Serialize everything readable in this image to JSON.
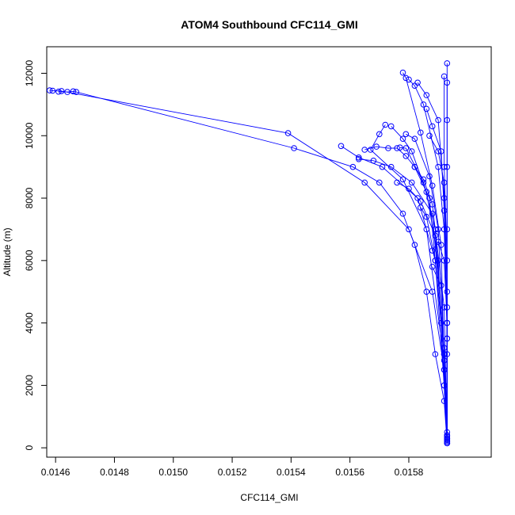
{
  "chart_data": {
    "type": "line",
    "title": "ATOM4 Southbound CFC114_GMI",
    "xlabel": "CFC114_GMI",
    "ylabel": "Altitude (m)",
    "xlim": [
      0.01457,
      0.01608
    ],
    "ylim": [
      -300,
      12850
    ],
    "x_ticks": [
      0.0146,
      0.0148,
      0.015,
      0.0152,
      0.0154,
      0.0156,
      0.0158
    ],
    "x_tick_labels": [
      "0.0146",
      "0.0148",
      "0.0150",
      "0.0152",
      "0.0154",
      "0.0156",
      "0.0158"
    ],
    "y_ticks": [
      0,
      2000,
      4000,
      6000,
      8000,
      10000,
      12000
    ],
    "y_tick_labels": [
      "0",
      "2000",
      "4000",
      "6000",
      "8000",
      "10000",
      "12000"
    ],
    "grid": false,
    "legend": "none",
    "color": "#0000ff",
    "series": [
      {
        "x": [
          0.01593,
          0.01592,
          0.01589,
          0.01586,
          0.01582,
          0.01578,
          0.0157,
          0.01561,
          0.01541,
          0.01467,
          0.01466,
          0.01464,
          0.01461
        ],
        "y": [
          150,
          1500,
          3000,
          5000,
          6500,
          7500,
          8500,
          9000,
          9600,
          11400,
          11420,
          11400,
          11410
        ]
      },
      {
        "x": [
          0.01593,
          0.01592,
          0.01588,
          0.0158,
          0.01565,
          0.01539,
          0.01462,
          0.01459,
          0.01458
        ],
        "y": [
          400,
          2500,
          5000,
          7000,
          8500,
          10080,
          11430,
          11440,
          11450
        ]
      },
      {
        "x": [
          0.01593,
          0.01592,
          0.01589,
          0.01583,
          0.01571,
          0.01563,
          0.01557
        ],
        "y": [
          200,
          3000,
          6000,
          8000,
          9000,
          9300,
          9670
        ]
      },
      {
        "x": [
          0.01593,
          0.01592,
          0.01586,
          0.01578,
          0.01567,
          0.0157,
          0.01572
        ],
        "y": [
          300,
          2800,
          7000,
          8600,
          9550,
          10050,
          10350
        ]
      },
      {
        "x": [
          0.01593,
          0.01592,
          0.01588,
          0.01581,
          0.01574,
          0.01568,
          0.01563
        ],
        "y": [
          500,
          3200,
          7500,
          8500,
          9000,
          9200,
          9250
        ]
      },
      {
        "x": [
          0.01593,
          0.01591,
          0.01587,
          0.01582,
          0.01579,
          0.01576,
          0.01573,
          0.01569,
          0.01565
        ],
        "y": [
          250,
          4000,
          8000,
          9000,
          9350,
          9600,
          9600,
          9650,
          9550
        ]
      },
      {
        "x": [
          0.01593,
          0.01592,
          0.01589,
          0.01585,
          0.01579,
          0.01577
        ],
        "y": [
          350,
          3000,
          7000,
          8500,
          9600,
          9620
        ]
      },
      {
        "x": [
          0.01593,
          0.01592,
          0.0159,
          0.01586,
          0.01581,
          0.01578,
          0.01574
        ],
        "y": [
          150,
          2000,
          6000,
          8200,
          9500,
          9900,
          10300
        ]
      },
      {
        "x": [
          0.01593,
          0.01592,
          0.0159,
          0.01587,
          0.01582,
          0.01579
        ],
        "y": [
          200,
          3000,
          7000,
          8700,
          9900,
          10050
        ]
      },
      {
        "x": [
          0.01593,
          0.01592,
          0.01591,
          0.01588,
          0.01584,
          0.01579,
          0.01578
        ],
        "y": [
          300,
          2500,
          6500,
          8400,
          10100,
          11850,
          12020
        ]
      },
      {
        "x": [
          0.01593,
          0.01593,
          0.01592,
          0.0159,
          0.01585,
          0.01582,
          0.0158
        ],
        "y": [
          400,
          4000,
          7000,
          9000,
          11000,
          11600,
          11800
        ]
      },
      {
        "x": [
          0.01593,
          0.01593,
          0.01592,
          0.0159,
          0.01586,
          0.01583
        ],
        "y": [
          250,
          3500,
          8000,
          10500,
          11300,
          11700
        ]
      },
      {
        "x": [
          0.01593,
          0.01593,
          0.01592,
          0.01591,
          0.01588,
          0.01586
        ],
        "y": [
          200,
          4000,
          7600,
          9500,
          10300,
          10860
        ]
      },
      {
        "x": [
          0.01593,
          0.01593,
          0.01592,
          0.0159,
          0.01587
        ],
        "y": [
          150,
          5000,
          8500,
          9500,
          10000
        ]
      },
      {
        "x": [
          0.01593,
          0.01592,
          0.01588,
          0.01585,
          0.01582
        ],
        "y": [
          300,
          4500,
          7800,
          8600,
          9000
        ]
      },
      {
        "x": [
          0.01593,
          0.01592,
          0.01589,
          0.01584,
          0.0158,
          0.01576
        ],
        "y": [
          150,
          3000,
          6800,
          7900,
          8300,
          8500
        ]
      },
      {
        "x": [
          0.01593,
          0.01592,
          0.01589,
          0.01586,
          0.01584
        ],
        "y": [
          250,
          2000,
          6000,
          7400,
          7700
        ]
      },
      {
        "x": [
          0.01593,
          0.01593,
          0.01592,
          0.0159,
          0.01588
        ],
        "y": [
          350,
          4000,
          6000,
          6600,
          6320
        ]
      },
      {
        "x": [
          0.01593,
          0.01593,
          0.01593,
          0.01592,
          0.01592
        ],
        "y": [
          150,
          3000,
          6000,
          9000,
          11900
        ]
      },
      {
        "x": [
          0.01593,
          0.01593,
          0.01593,
          0.01593,
          0.01593
        ],
        "y": [
          200,
          3500,
          7000,
          10500,
          12320
        ]
      },
      {
        "x": [
          0.01593,
          0.01593,
          0.01593,
          0.01593
        ],
        "y": [
          300,
          4500,
          9000,
          11700
        ]
      },
      {
        "x": [
          0.01593,
          0.01592,
          0.01591,
          0.01588
        ],
        "y": [
          400,
          3000,
          5200,
          5800
        ]
      }
    ]
  }
}
